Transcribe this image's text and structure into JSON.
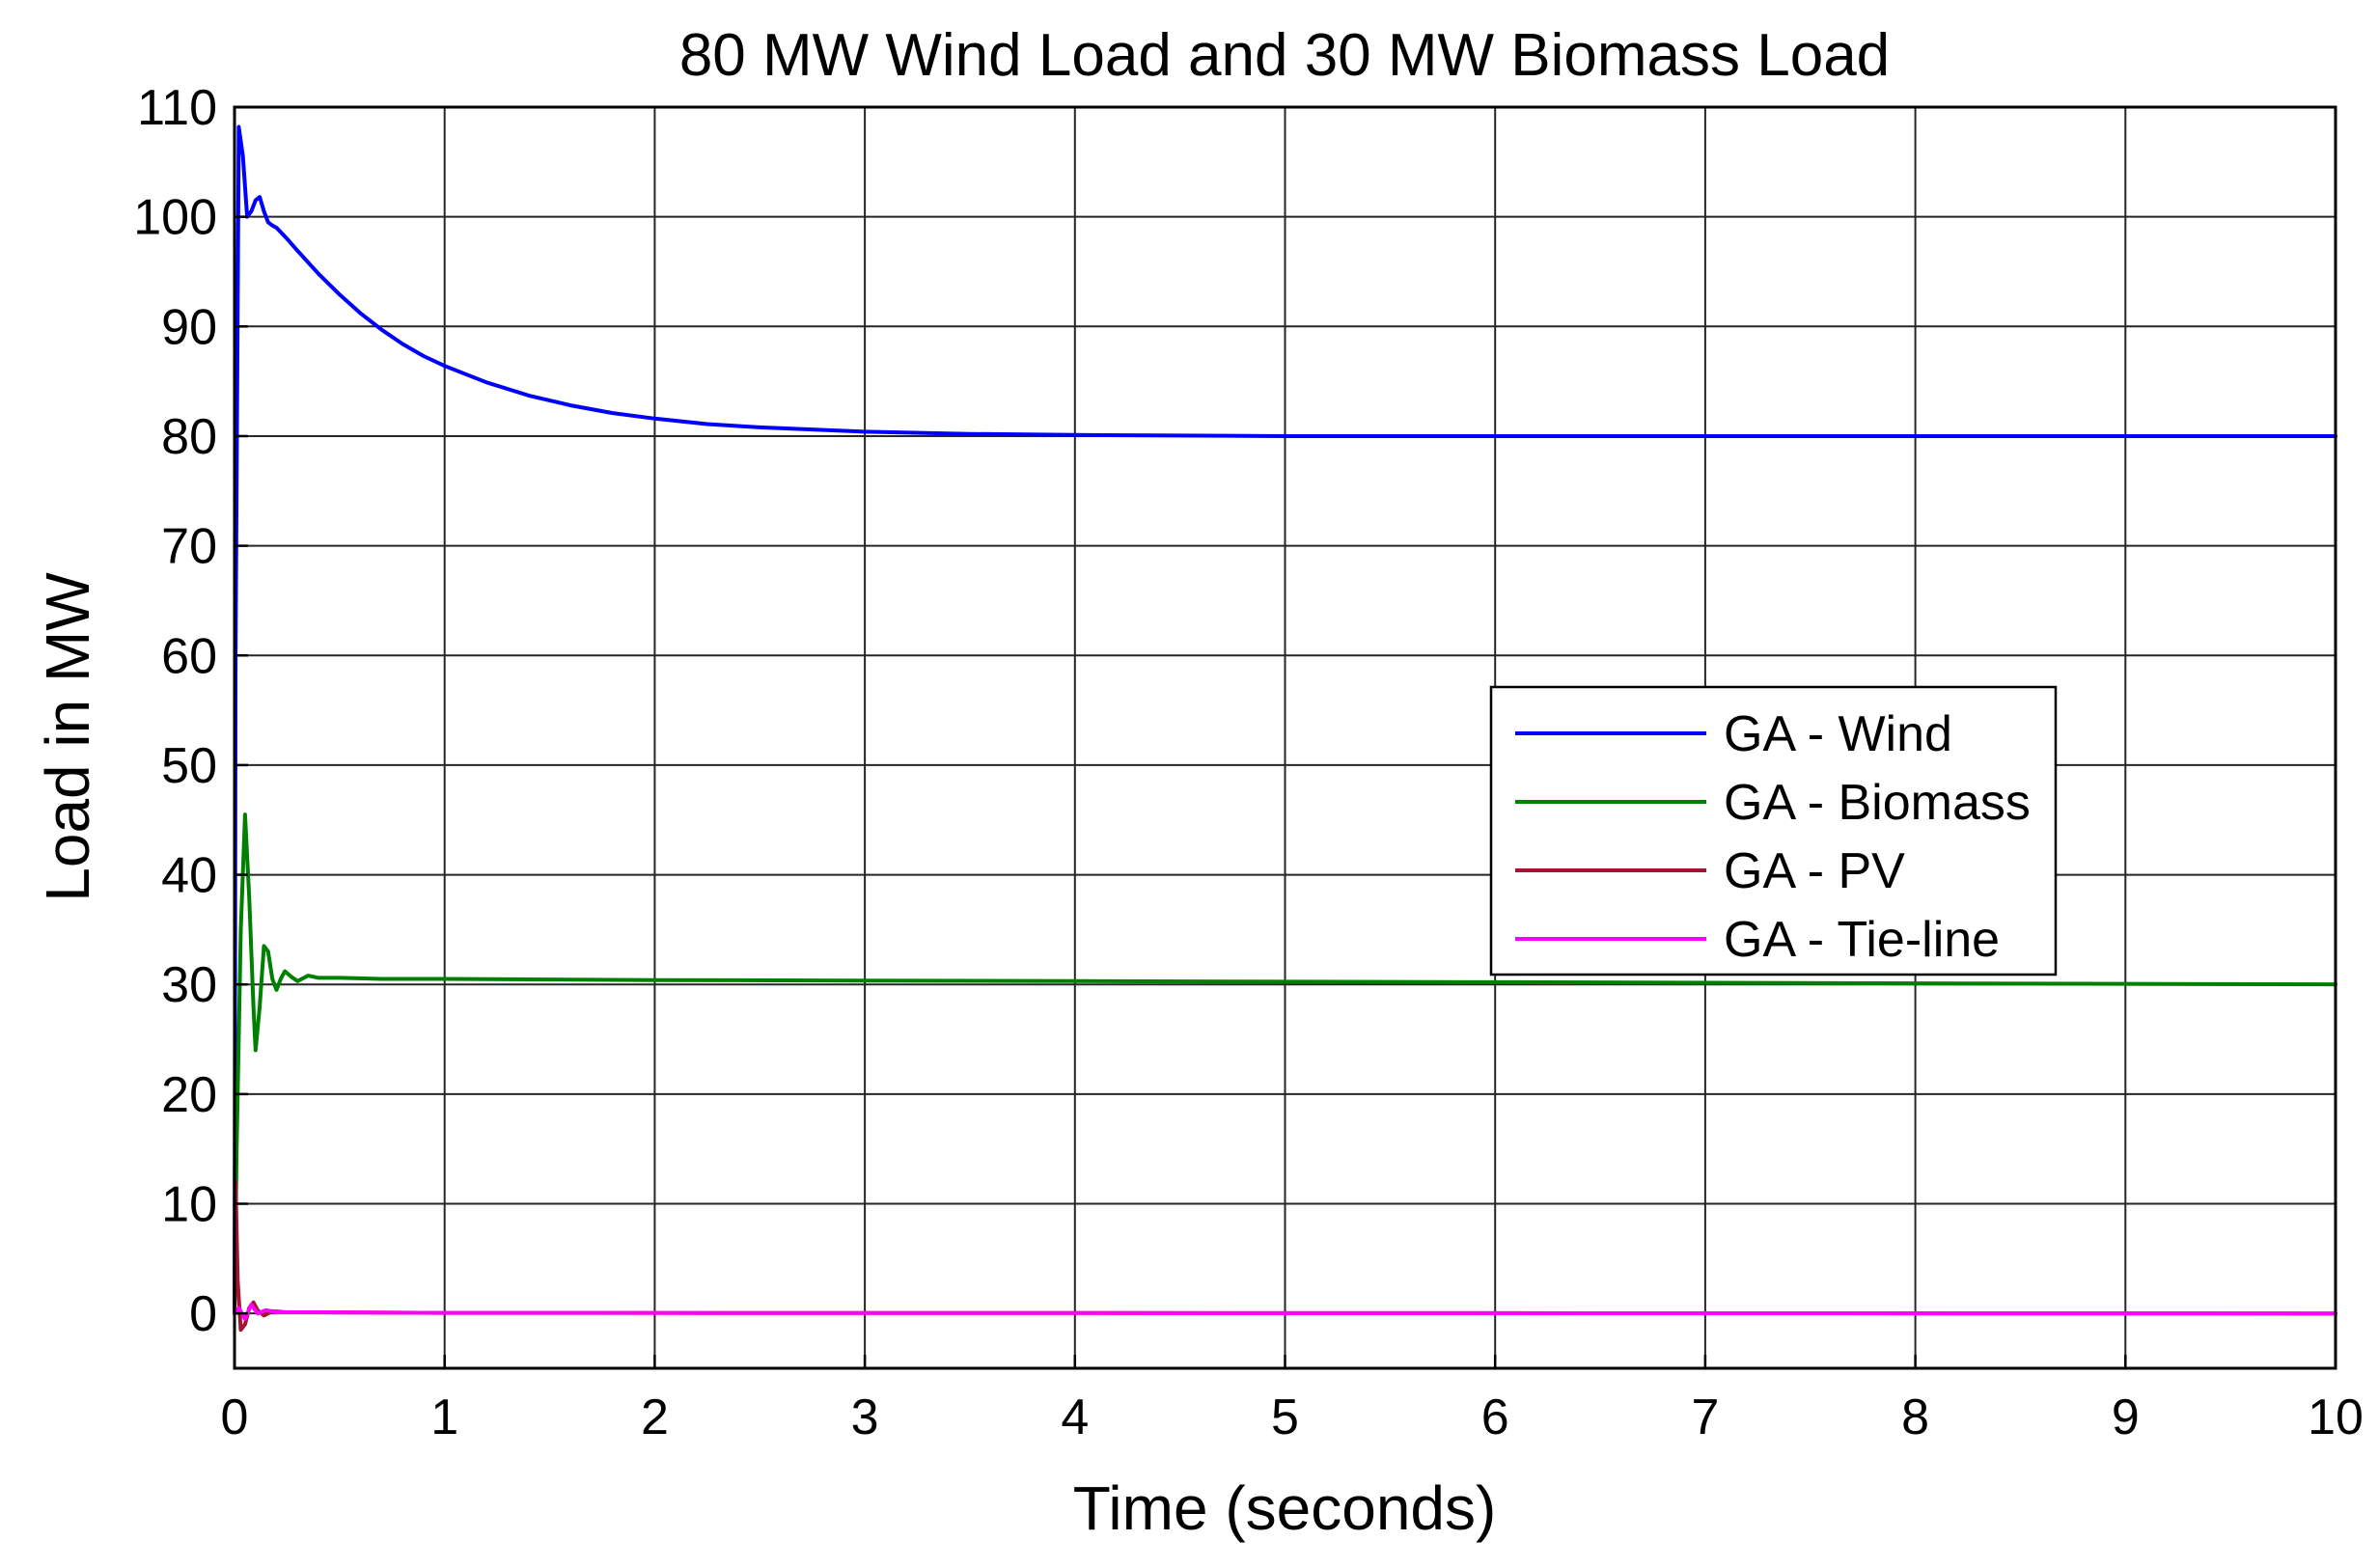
{
  "chart_data": {
    "type": "line",
    "title": "80 MW Wind Load and 30 MW Biomass Load",
    "xlabel": "Time (seconds)",
    "ylabel": "Load in MW",
    "xlim": [
      0,
      10
    ],
    "ylim": [
      -5,
      110
    ],
    "xticks": [
      0,
      1,
      2,
      3,
      4,
      5,
      6,
      7,
      8,
      9,
      10
    ],
    "yticks": [
      0,
      10,
      20,
      30,
      40,
      50,
      60,
      70,
      80,
      90,
      100,
      110
    ],
    "grid": true,
    "legend_position": "center-right",
    "series": [
      {
        "name": "GA - Wind",
        "color": "#0000ff",
        "x": [
          0,
          0.005,
          0.02,
          0.04,
          0.06,
          0.08,
          0.1,
          0.12,
          0.14,
          0.16,
          0.18,
          0.2,
          0.25,
          0.3,
          0.4,
          0.5,
          0.6,
          0.7,
          0.8,
          0.9,
          1.0,
          1.2,
          1.4,
          1.6,
          1.8,
          2.0,
          2.25,
          2.5,
          2.75,
          3.0,
          3.5,
          4.0,
          4.5,
          5.0,
          6.0,
          7.0,
          8.0,
          9.0,
          10.0
        ],
        "y": [
          0,
          60,
          108.2,
          105.5,
          100.0,
          100.5,
          101.5,
          101.8,
          100.5,
          99.5,
          99.2,
          99.0,
          98.0,
          96.9,
          94.8,
          92.9,
          91.2,
          89.7,
          88.4,
          87.3,
          86.4,
          84.9,
          83.7,
          82.8,
          82.1,
          81.6,
          81.1,
          80.8,
          80.6,
          80.4,
          80.2,
          80.1,
          80.05,
          80.0,
          80.0,
          80.0,
          80.0,
          80.0,
          80.0
        ]
      },
      {
        "name": "GA - Biomass",
        "color": "#008000",
        "x": [
          0,
          0.01,
          0.03,
          0.05,
          0.07,
          0.09,
          0.1,
          0.12,
          0.14,
          0.16,
          0.18,
          0.2,
          0.22,
          0.24,
          0.27,
          0.3,
          0.35,
          0.4,
          0.5,
          0.7,
          1.0,
          2.0,
          4.0,
          6.0,
          8.0,
          10.0
        ],
        "y": [
          0,
          15,
          35,
          45.5,
          38,
          28,
          24,
          28,
          33.5,
          33,
          30.5,
          29.5,
          30.5,
          31.2,
          30.7,
          30.3,
          30.8,
          30.6,
          30.6,
          30.5,
          30.5,
          30.4,
          30.3,
          30.2,
          30.1,
          30.0
        ]
      },
      {
        "name": "GA - PV",
        "color": "#a2142f",
        "x": [
          0,
          0.005,
          0.015,
          0.03,
          0.05,
          0.07,
          0.09,
          0.11,
          0.14,
          0.18,
          0.25,
          0.4,
          1.0,
          10.0
        ],
        "y": [
          0,
          12,
          3,
          -1.5,
          -1.0,
          0.5,
          1.0,
          0.3,
          -0.2,
          0.2,
          0.1,
          0.1,
          0.05,
          0.0
        ]
      },
      {
        "name": "GA - Tie-line",
        "color": "#ff00ff",
        "x": [
          0,
          0.02,
          0.05,
          0.08,
          0.11,
          0.15,
          0.2,
          0.3,
          1.0,
          10.0
        ],
        "y": [
          0,
          0.5,
          -0.5,
          0.8,
          0.0,
          0.3,
          0.1,
          0.1,
          0.05,
          0.0
        ]
      }
    ]
  }
}
